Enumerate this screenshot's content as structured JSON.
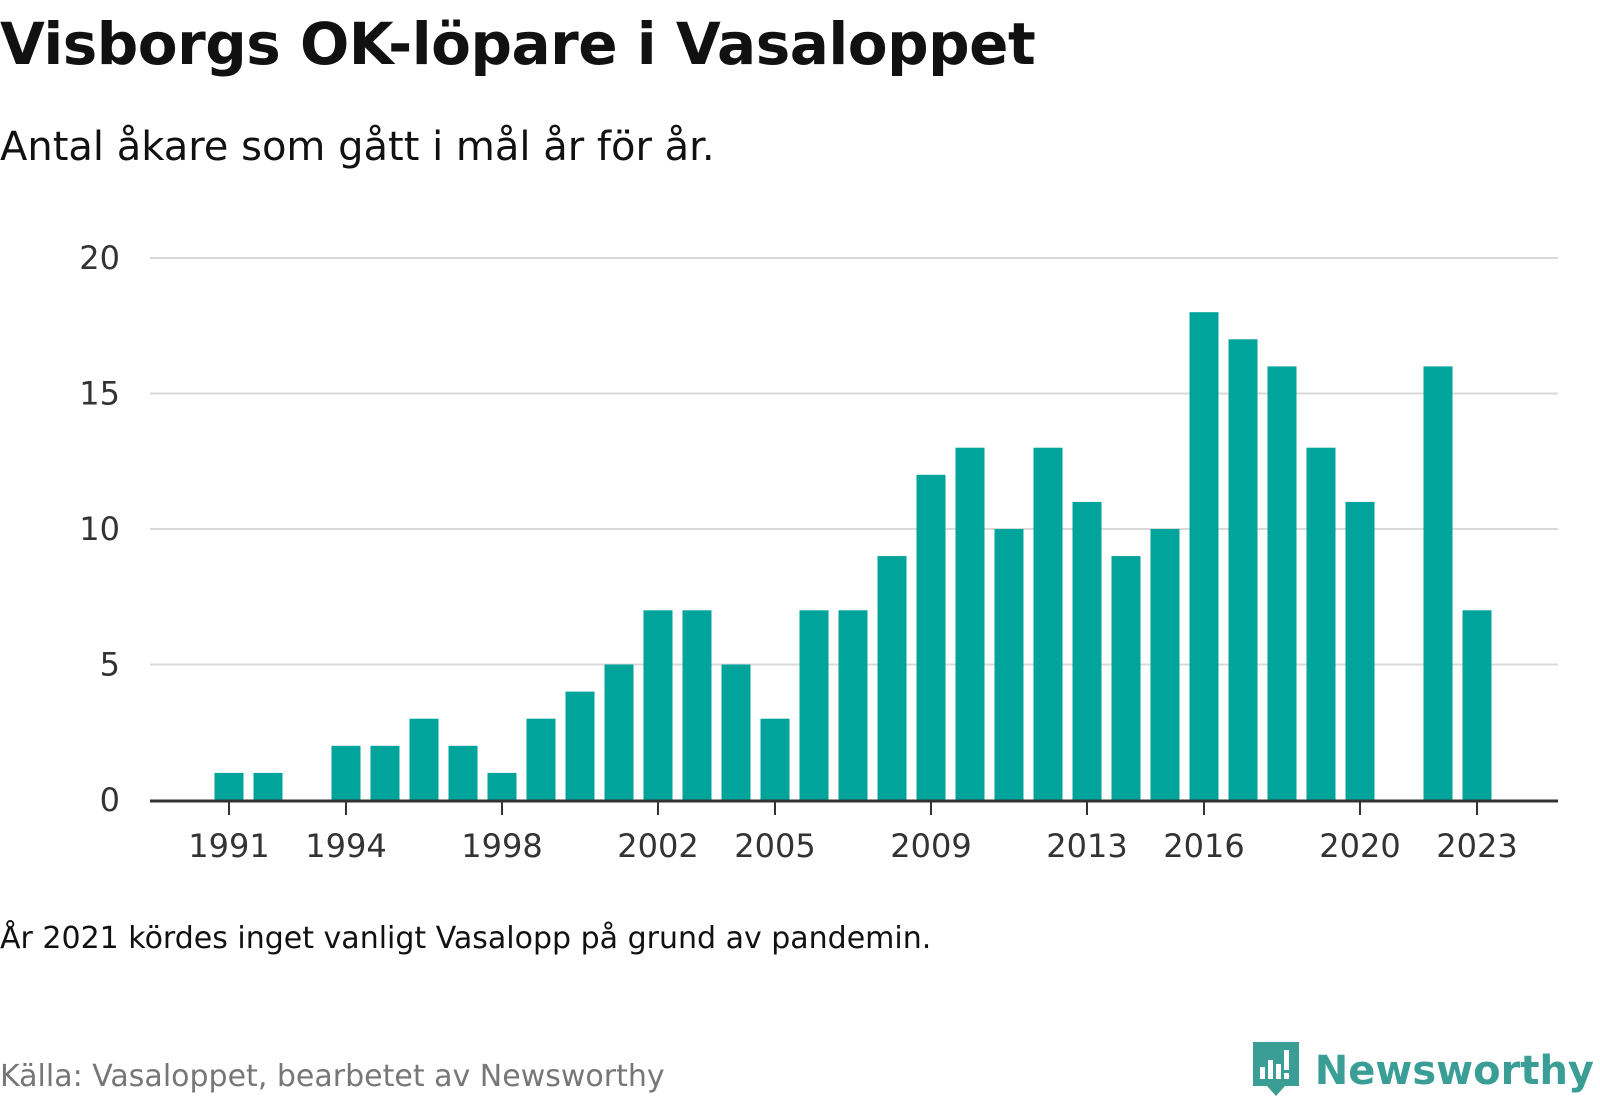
{
  "header": {
    "title": "Visborgs OK-löpare i Vasaloppet",
    "subtitle": "Antal åkare som gått i mål år för år."
  },
  "footer": {
    "note": "År 2021 kördes inget vanligt Vasalopp på grund av pandemin.",
    "source": "Källa: Vasaloppet, bearbetet av Newsworthy",
    "brand": "Newsworthy"
  },
  "colors": {
    "bar": "#00a49a",
    "grid": "#d9d9d9",
    "axis": "#333333",
    "brand": "#3a9e96"
  },
  "icons": {
    "brand_logo": "bar-chart-speech-bubble-icon"
  },
  "chart_data": {
    "type": "bar",
    "categories": [
      1989,
      1990,
      1991,
      1992,
      1993,
      1994,
      1995,
      1996,
      1997,
      1998,
      1999,
      2000,
      2001,
      2002,
      2003,
      2004,
      2005,
      2006,
      2007,
      2008,
      2009,
      2010,
      2011,
      2012,
      2013,
      2014,
      2015,
      2016,
      2017,
      2018,
      2019,
      2020,
      2021,
      2022,
      2023
    ],
    "values": [
      0,
      0,
      1,
      1,
      0,
      2,
      2,
      3,
      2,
      1,
      3,
      4,
      5,
      7,
      7,
      5,
      3,
      7,
      7,
      9,
      12,
      13,
      10,
      13,
      11,
      9,
      10,
      18,
      17,
      16,
      13,
      11,
      0,
      16,
      7
    ],
    "x_tick_labels": [
      "1991",
      "1994",
      "1998",
      "2002",
      "2005",
      "2009",
      "2013",
      "2016",
      "2020",
      "2023"
    ],
    "y_ticks": [
      0,
      5,
      10,
      15,
      20
    ],
    "ylim": [
      0,
      20
    ],
    "xlabel": "",
    "ylabel": "",
    "grid": true,
    "legend": "none"
  }
}
